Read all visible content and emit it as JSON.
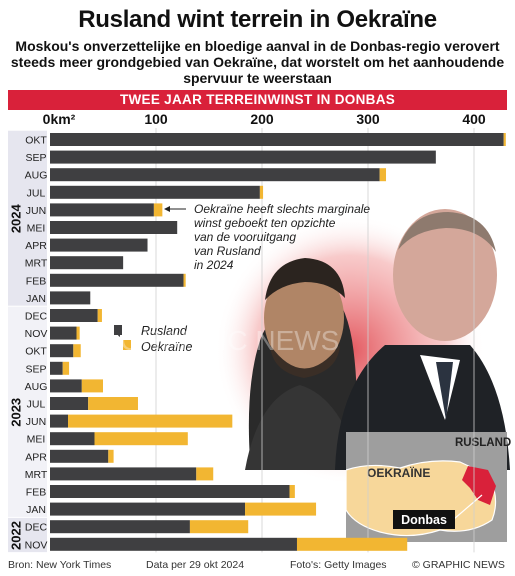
{
  "title": "Rusland wint terrein in Oekraïne",
  "subtitle": "Moskou's onverzettelijke en bloedige aanval in de Donbas-regio verovert steeds meer grondgebied van Oekraïne, dat worstelt om het aanhoudende spervuur te weerstaan",
  "banner": "TWEE JAAR TERREINWINST IN DONBAS",
  "annotation": "Oekraïne heeft slechts marginale winst geboekt ten opzichte van de vooruitgang van Rusland in 2024",
  "map": {
    "country_label": "OEKRAÏNE",
    "neighbor_label": "RUSLAND",
    "region_label": "Donbas"
  },
  "watermark": "GRAPHIC NEWS",
  "footer": {
    "source": "Bron: New York Times",
    "date": "Data per 29 okt 2024",
    "photos": "Foto's: Getty Images",
    "brand": "© GRAPHIC NEWS"
  },
  "colors": {
    "russia": "#3f3f41",
    "ukraine": "#f2b632",
    "banner": "#d9213a",
    "map_ukraine": "#f7d79a",
    "map_donbas": "#d9213a",
    "map_russia": "#c9c9c9"
  },
  "chart_data": {
    "type": "bar",
    "orientation": "horizontal",
    "stacked": true,
    "unit": "km²",
    "xlim": [
      0,
      430
    ],
    "xticks": [
      0,
      100,
      200,
      300,
      400
    ],
    "xtick_labels": [
      "0km²",
      "100",
      "200",
      "300",
      "400"
    ],
    "legend": [
      "Rusland",
      "Oekraïne"
    ],
    "categories": [
      "OKT",
      "SEP",
      "AUG",
      "JUL",
      "JUN",
      "MEI",
      "APR",
      "MRT",
      "FEB",
      "JAN",
      "DEC",
      "NOV",
      "OKT",
      "SEP",
      "AUG",
      "JUL",
      "JUN",
      "MEI",
      "APR",
      "MRT",
      "FEB",
      "JAN",
      "DEC",
      "NOV"
    ],
    "year_groups": [
      {
        "label": "2024",
        "from": 0,
        "to": 9
      },
      {
        "label": "2023",
        "from": 10,
        "to": 21
      },
      {
        "label": "2022",
        "from": 22,
        "to": 23
      }
    ],
    "series": [
      {
        "name": "Rusland",
        "values": [
          428,
          364,
          311,
          198,
          98,
          120,
          92,
          69,
          126,
          38,
          45,
          25,
          22,
          12,
          30,
          36,
          17,
          42,
          55,
          138,
          226,
          184,
          132,
          233
        ]
      },
      {
        "name": "Oekraïne",
        "values": [
          2,
          0,
          6,
          3,
          8,
          0,
          0,
          0,
          2,
          0,
          4,
          3,
          7,
          6,
          20,
          47,
          155,
          88,
          5,
          16,
          5,
          67,
          55,
          104
        ]
      }
    ]
  }
}
